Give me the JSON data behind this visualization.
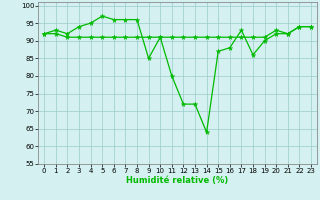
{
  "x": [
    0,
    1,
    2,
    3,
    4,
    5,
    6,
    7,
    8,
    9,
    10,
    11,
    12,
    13,
    14,
    15,
    16,
    17,
    18,
    19,
    20,
    21,
    22,
    23
  ],
  "line1": [
    92,
    92,
    91,
    91,
    91,
    91,
    91,
    91,
    91,
    91,
    91,
    91,
    91,
    91,
    91,
    91,
    91,
    91,
    91,
    91,
    93,
    92,
    94,
    94
  ],
  "line2": [
    92,
    93,
    92,
    94,
    95,
    97,
    96,
    96,
    96,
    85,
    91,
    80,
    72,
    72,
    64,
    87,
    88,
    93,
    86,
    90,
    92,
    92,
    94,
    94
  ],
  "line_color": "#00bb00",
  "bg_color": "#d4f0f0",
  "grid_color": "#99cccc",
  "xlabel": "Humidité relative (%)",
  "ylim": [
    55,
    101
  ],
  "xlim": [
    -0.5,
    23.5
  ],
  "yticks": [
    55,
    60,
    65,
    70,
    75,
    80,
    85,
    90,
    95,
    100
  ],
  "xticks": [
    0,
    1,
    2,
    3,
    4,
    5,
    6,
    7,
    8,
    9,
    10,
    11,
    12,
    13,
    14,
    15,
    16,
    17,
    18,
    19,
    20,
    21,
    22,
    23
  ],
  "marker": "*",
  "marker_size": 3.5,
  "linewidth": 0.9
}
